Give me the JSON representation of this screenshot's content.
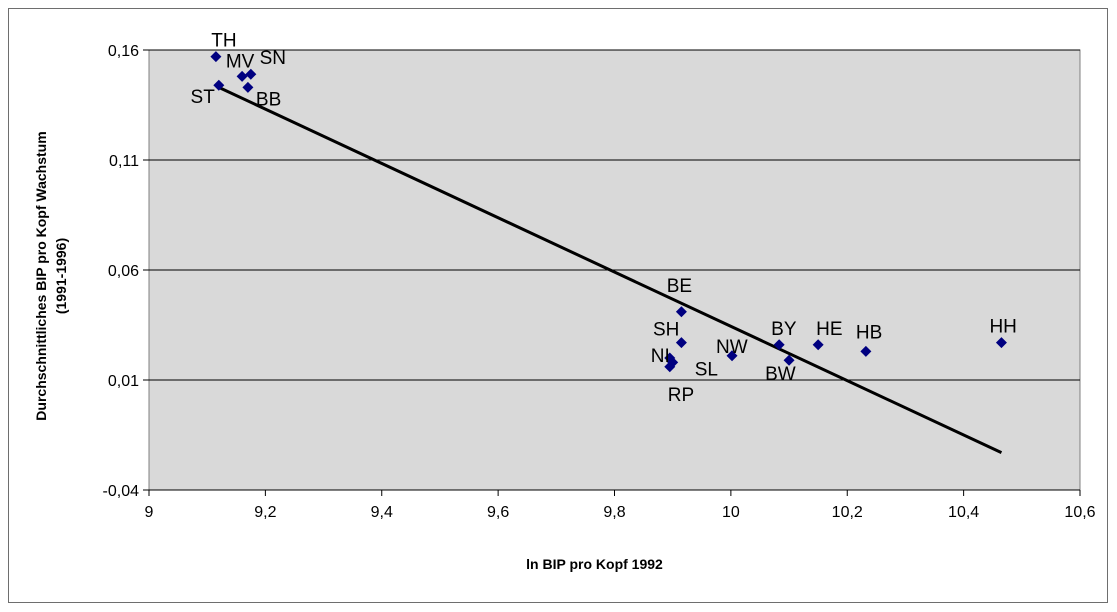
{
  "chart_data": {
    "type": "scatter",
    "xlabel": "ln BIP pro Kopf 1992",
    "ylabel_line1": "Durchschnittliches  BIP pro Kopf Wachstum",
    "ylabel_line2": "(1991-1996)",
    "xlim": [
      9,
      10.6
    ],
    "ylim": [
      -0.04,
      0.16
    ],
    "x_ticks": [
      9,
      9.2,
      9.4,
      9.6,
      9.8,
      10,
      10.2,
      10.4,
      10.6
    ],
    "y_ticks": [
      -0.04,
      0.01,
      0.06,
      0.11,
      0.16
    ],
    "x_tick_labels": [
      "9",
      "9,2",
      "9,4",
      "9,6",
      "9,8",
      "10",
      "10,2",
      "10,4",
      "10,6"
    ],
    "y_tick_labels": [
      "-0,04",
      "0,01",
      "0,06",
      "0,11",
      "0,16"
    ],
    "grid": "horizontal",
    "plot_background": "#d9d9d9",
    "marker_color": "#000080",
    "line_color": "#000000",
    "points": [
      {
        "label": "TH",
        "x": 9.115,
        "y": 0.157
      },
      {
        "label": "MV",
        "x": 9.16,
        "y": 0.148
      },
      {
        "label": "SN",
        "x": 9.175,
        "y": 0.149
      },
      {
        "label": "ST",
        "x": 9.12,
        "y": 0.144
      },
      {
        "label": "BB",
        "x": 9.17,
        "y": 0.143
      },
      {
        "label": "BE",
        "x": 9.915,
        "y": 0.041
      },
      {
        "label": "SH",
        "x": 9.915,
        "y": 0.027
      },
      {
        "label": "NI",
        "x": 9.895,
        "y": 0.02
      },
      {
        "label": "SL",
        "x": 9.9,
        "y": 0.018
      },
      {
        "label": "RP",
        "x": 9.895,
        "y": 0.016
      },
      {
        "label": "NW",
        "x": 10.002,
        "y": 0.021
      },
      {
        "label": "BY",
        "x": 10.083,
        "y": 0.026
      },
      {
        "label": "BW",
        "x": 10.1,
        "y": 0.019
      },
      {
        "label": "HE",
        "x": 10.15,
        "y": 0.026
      },
      {
        "label": "HB",
        "x": 10.232,
        "y": 0.023
      },
      {
        "label": "HH",
        "x": 10.465,
        "y": 0.027
      }
    ],
    "trendline": {
      "x": [
        9.12,
        10.465
      ],
      "y": [
        0.143,
        -0.023
      ]
    }
  }
}
